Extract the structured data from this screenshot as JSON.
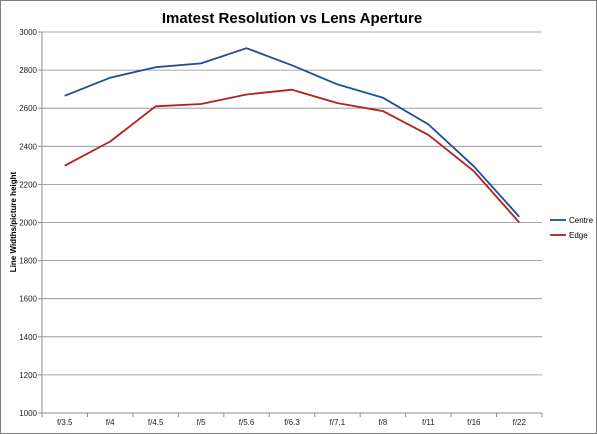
{
  "chart_data": {
    "type": "line",
    "title": "Imatest Resolution vs Lens Aperture",
    "xlabel": "",
    "ylabel": "Line Widths/picture height",
    "categories": [
      "f/3.5",
      "f/4",
      "f/4.5",
      "f/5",
      "f/5.6",
      "f/6.3",
      "f/7.1",
      "f/8",
      "f/11",
      "f/16",
      "f/22"
    ],
    "series": [
      {
        "name": "Centre",
        "color": "#1f4e9a",
        "values": [
          2665,
          2760,
          2815,
          2835,
          2915,
          2825,
          2725,
          2655,
          2515,
          2295,
          2030
        ]
      },
      {
        "name": "Edge",
        "color": "#b22020",
        "values": [
          2298,
          2425,
          2610,
          2622,
          2672,
          2697,
          2627,
          2585,
          2460,
          2270,
          2000
        ]
      }
    ],
    "ylim": [
      1000,
      3000
    ],
    "yticks": [
      1000,
      1200,
      1400,
      1600,
      1800,
      2000,
      2200,
      2400,
      2600,
      2800,
      3000
    ],
    "grid": true,
    "legend": "right"
  }
}
